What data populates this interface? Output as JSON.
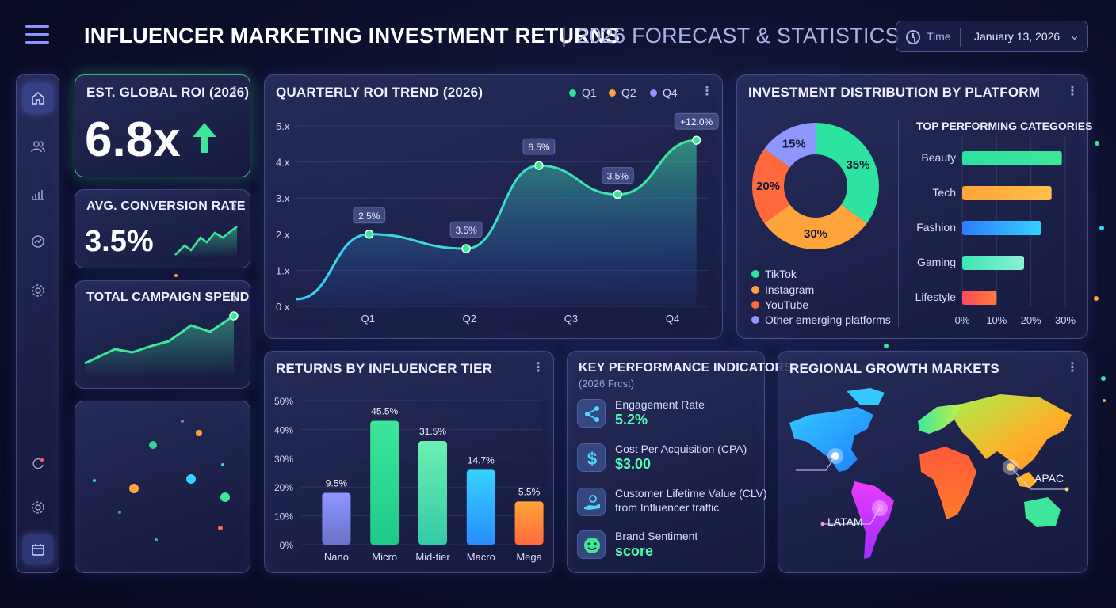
{
  "header": {
    "title": "INFLUENCER MARKETING INVESTMENT RETURNS",
    "separator": "|",
    "subtitle": "2026 FORECAST & STATISTICS",
    "time_label": "Time",
    "date": "January 13, 2026"
  },
  "sidebar": {
    "items": [
      {
        "icon": "home-icon"
      },
      {
        "icon": "users-icon"
      },
      {
        "icon": "bar-chart-icon"
      },
      {
        "icon": "analytics-icon"
      },
      {
        "icon": "gear-icon"
      },
      {
        "icon": "sync-icon"
      },
      {
        "icon": "gear-icon"
      },
      {
        "icon": "calendar-icon"
      }
    ]
  },
  "cards": {
    "roi_title": "EST. GLOBAL ROI (2026)",
    "roi_value": "6.8x",
    "conversion_title": "AVG. CONVERSION RATE",
    "conversion_value": "3.5%",
    "spend_title": "TOTAL CAMPAIGN SPEND"
  },
  "colors": {
    "accent_green": "#3ee69a",
    "accent_cyan": "#35d2ff",
    "tiktok": "#2de3a0",
    "instagram": "#ffa43a",
    "youtube": "#ff6a3d",
    "other": "#8e97ff"
  },
  "chart_data": [
    {
      "id": "quarterly",
      "type": "area",
      "title": "QUARTERLY ROI TREND (2026)",
      "legend": [
        "Q1",
        "Q2",
        "Q4"
      ],
      "legend_colors": [
        "#2de3a0",
        "#ffa43a",
        "#8e97ff"
      ],
      "y_ticks": [
        "5.x",
        "4.x",
        "3.x",
        "2.x",
        "1.x",
        "0 x"
      ],
      "x_ticks": [
        "Q1",
        "Q2",
        "Q3",
        "Q4"
      ],
      "ylim": [
        0,
        5
      ],
      "points": [
        {
          "x": 0.0,
          "y": 0.2,
          "label": ""
        },
        {
          "x": 0.6,
          "y": 2.0,
          "label": "2.5%"
        },
        {
          "x": 1.4,
          "y": 1.6,
          "label": "3.5%"
        },
        {
          "x": 2.0,
          "y": 3.9,
          "label": "6.5%"
        },
        {
          "x": 2.65,
          "y": 3.1,
          "label": "3.5%"
        },
        {
          "x": 3.3,
          "y": 4.6,
          "label": "+12.0%"
        }
      ]
    },
    {
      "id": "platform",
      "type": "pie",
      "title": "INVESTMENT DISTRIBUTION BY PLATFORM",
      "slices": [
        {
          "name": "TikTok",
          "value": 35,
          "label": "35%"
        },
        {
          "name": "Instagram",
          "value": 30,
          "label": "30%"
        },
        {
          "name": "YouTube",
          "value": 20,
          "label": "20%"
        },
        {
          "name": "Other emerging platforms",
          "value": 15,
          "label": "15%"
        }
      ]
    },
    {
      "id": "categories",
      "type": "bar",
      "orientation": "horizontal",
      "title": "TOP PERFORMING CATEGORIES",
      "categories": [
        "Beauty",
        "Tech",
        "Fashion",
        "Gaming",
        "Lifestyle"
      ],
      "values": [
        29,
        26,
        23,
        18,
        10
      ],
      "x_ticks": [
        "0%",
        "10%",
        "20%",
        "30%"
      ],
      "xlim": [
        0,
        30
      ]
    },
    {
      "id": "tier",
      "type": "bar",
      "title": "RETURNS BY INFLUENCER TIER",
      "categories": [
        "Nano",
        "Micro",
        "Mid-tier",
        "Macro",
        "Mega"
      ],
      "values": [
        9.5,
        45.5,
        31.5,
        14.7,
        5.5
      ],
      "bar_heights": [
        18,
        43,
        36,
        26,
        15
      ],
      "value_labels": [
        "9.5%",
        "45.5%",
        "31.5%",
        "14.7%",
        "5.5%"
      ],
      "y_ticks": [
        "50%",
        "40%",
        "30%",
        "20%",
        "10%",
        "0%"
      ],
      "ylim": [
        0,
        50
      ]
    }
  ],
  "kpi": {
    "title": "KEY PERFORMANCE INDICATORS",
    "subtitle": "(2026 Frcst)",
    "items": [
      {
        "label": "Engagement Rate",
        "value": "5.2%",
        "icon": "share-icon"
      },
      {
        "label": "Cost Per Acquisition (CPA)",
        "value": "$3.00",
        "icon": "dollar-icon"
      },
      {
        "label": "Customer Lifetime Value (CLV)",
        "label2": "from Influencer traffic",
        "icon": "hand-coin-icon"
      },
      {
        "label": "Brand Sentiment",
        "value": "score",
        "icon": "smiley-icon"
      }
    ]
  },
  "regional": {
    "title": "REGIONAL GROWTH MARKETS",
    "labels": [
      "APAC",
      "LATAM"
    ]
  }
}
